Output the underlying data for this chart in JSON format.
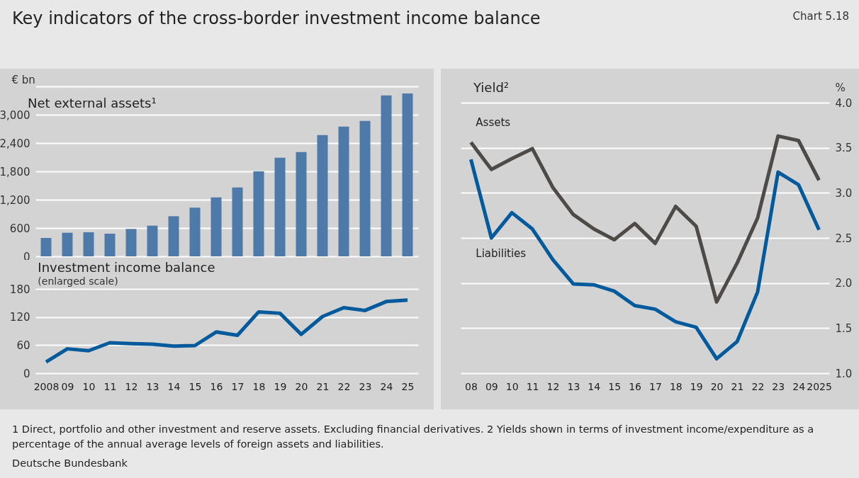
{
  "chart_data": [
    {
      "type": "bar",
      "title": "Net external assets¹",
      "ylabel": "€ bn",
      "annotations": [
        "Key indicators of the cross-border investment income balance",
        "Chart 5.18"
      ],
      "categories": [
        "2008",
        "09",
        "10",
        "11",
        "12",
        "13",
        "14",
        "15",
        "16",
        "17",
        "18",
        "19",
        "20",
        "21",
        "22",
        "23",
        "24",
        "25"
      ],
      "series": [
        {
          "color": "#4d7aa8",
          "values": [
            390,
            500,
            510,
            480,
            580,
            650,
            850,
            1030,
            1250,
            1460,
            1800,
            2090,
            2210,
            2570,
            2750,
            2870,
            3410,
            3450
          ]
        }
      ],
      "ylim": [
        0,
        3600
      ],
      "yticks": [
        0,
        600,
        {
          "value": 1200,
          "label": "1,200"
        },
        {
          "value": 1800,
          "label": "1,800"
        },
        {
          "value": 2400,
          "label": "2,400"
        },
        {
          "value": 3000,
          "label": "3,000"
        },
        {
          "value": 3600,
          "label": null
        }
      ],
      "grid": "y",
      "tick_labels": "y"
    },
    {
      "type": "line",
      "title": "Investment income balance",
      "subtitle": "(enlarged scale)",
      "categories": [
        "2008",
        "09",
        "10",
        "11",
        "12",
        "13",
        "14",
        "15",
        "16",
        "17",
        "18",
        "19",
        "20",
        "21",
        "22",
        "23",
        "24",
        "25"
      ],
      "series": [
        {
          "color": "#005a9c",
          "values": [
            24,
            52,
            48,
            65,
            63,
            62,
            58,
            59,
            88,
            81,
            131,
            128,
            83,
            121,
            140,
            134,
            153,
            156
          ]
        }
      ],
      "ylim": [
        0,
        180
      ],
      "yticks": [
        0,
        60,
        120,
        180
      ],
      "grid": "y"
    },
    {
      "type": "line",
      "title": "Yield²",
      "ylabel": "%",
      "annotations": [
        "1 Direct, portfolio and other investment and reserve assets. Excluding financial derivatives. 2 Yields shown in terms of investment income/expenditure as a percentage of the annual average levels of foreign assets and liabilities.",
        "Deutsche Bundesbank"
      ],
      "categories": [
        "08",
        "09",
        "10",
        "11",
        "12",
        "13",
        "14",
        "15",
        "16",
        "17",
        "18",
        "19",
        "20",
        "21",
        "22",
        "23",
        "24",
        "2025"
      ],
      "series": [
        {
          "name": "Assets",
          "color": "#4d4a48",
          "values": [
            3.56,
            3.26,
            3.38,
            3.49,
            3.06,
            2.76,
            2.6,
            2.48,
            2.66,
            2.44,
            2.85,
            2.63,
            1.79,
            2.22,
            2.72,
            3.63,
            3.58,
            3.14
          ]
        },
        {
          "name": "Liabilities",
          "color": "#005a9c",
          "values": [
            3.37,
            2.5,
            2.78,
            2.6,
            2.26,
            1.99,
            1.98,
            1.91,
            1.75,
            1.71,
            1.57,
            1.51,
            1.16,
            1.35,
            1.9,
            3.23,
            3.09,
            2.59
          ]
        }
      ],
      "ylim": [
        1.0,
        4.0
      ],
      "yticks": [
        {
          "value": 1.0,
          "label": "1.0"
        },
        1.5,
        {
          "value": 2.0,
          "label": "2.0"
        },
        2.5,
        {
          "value": 3.0,
          "label": "3.0"
        },
        3.5,
        {
          "value": 4.0,
          "label": "4.0"
        }
      ],
      "grid": "y"
    }
  ]
}
